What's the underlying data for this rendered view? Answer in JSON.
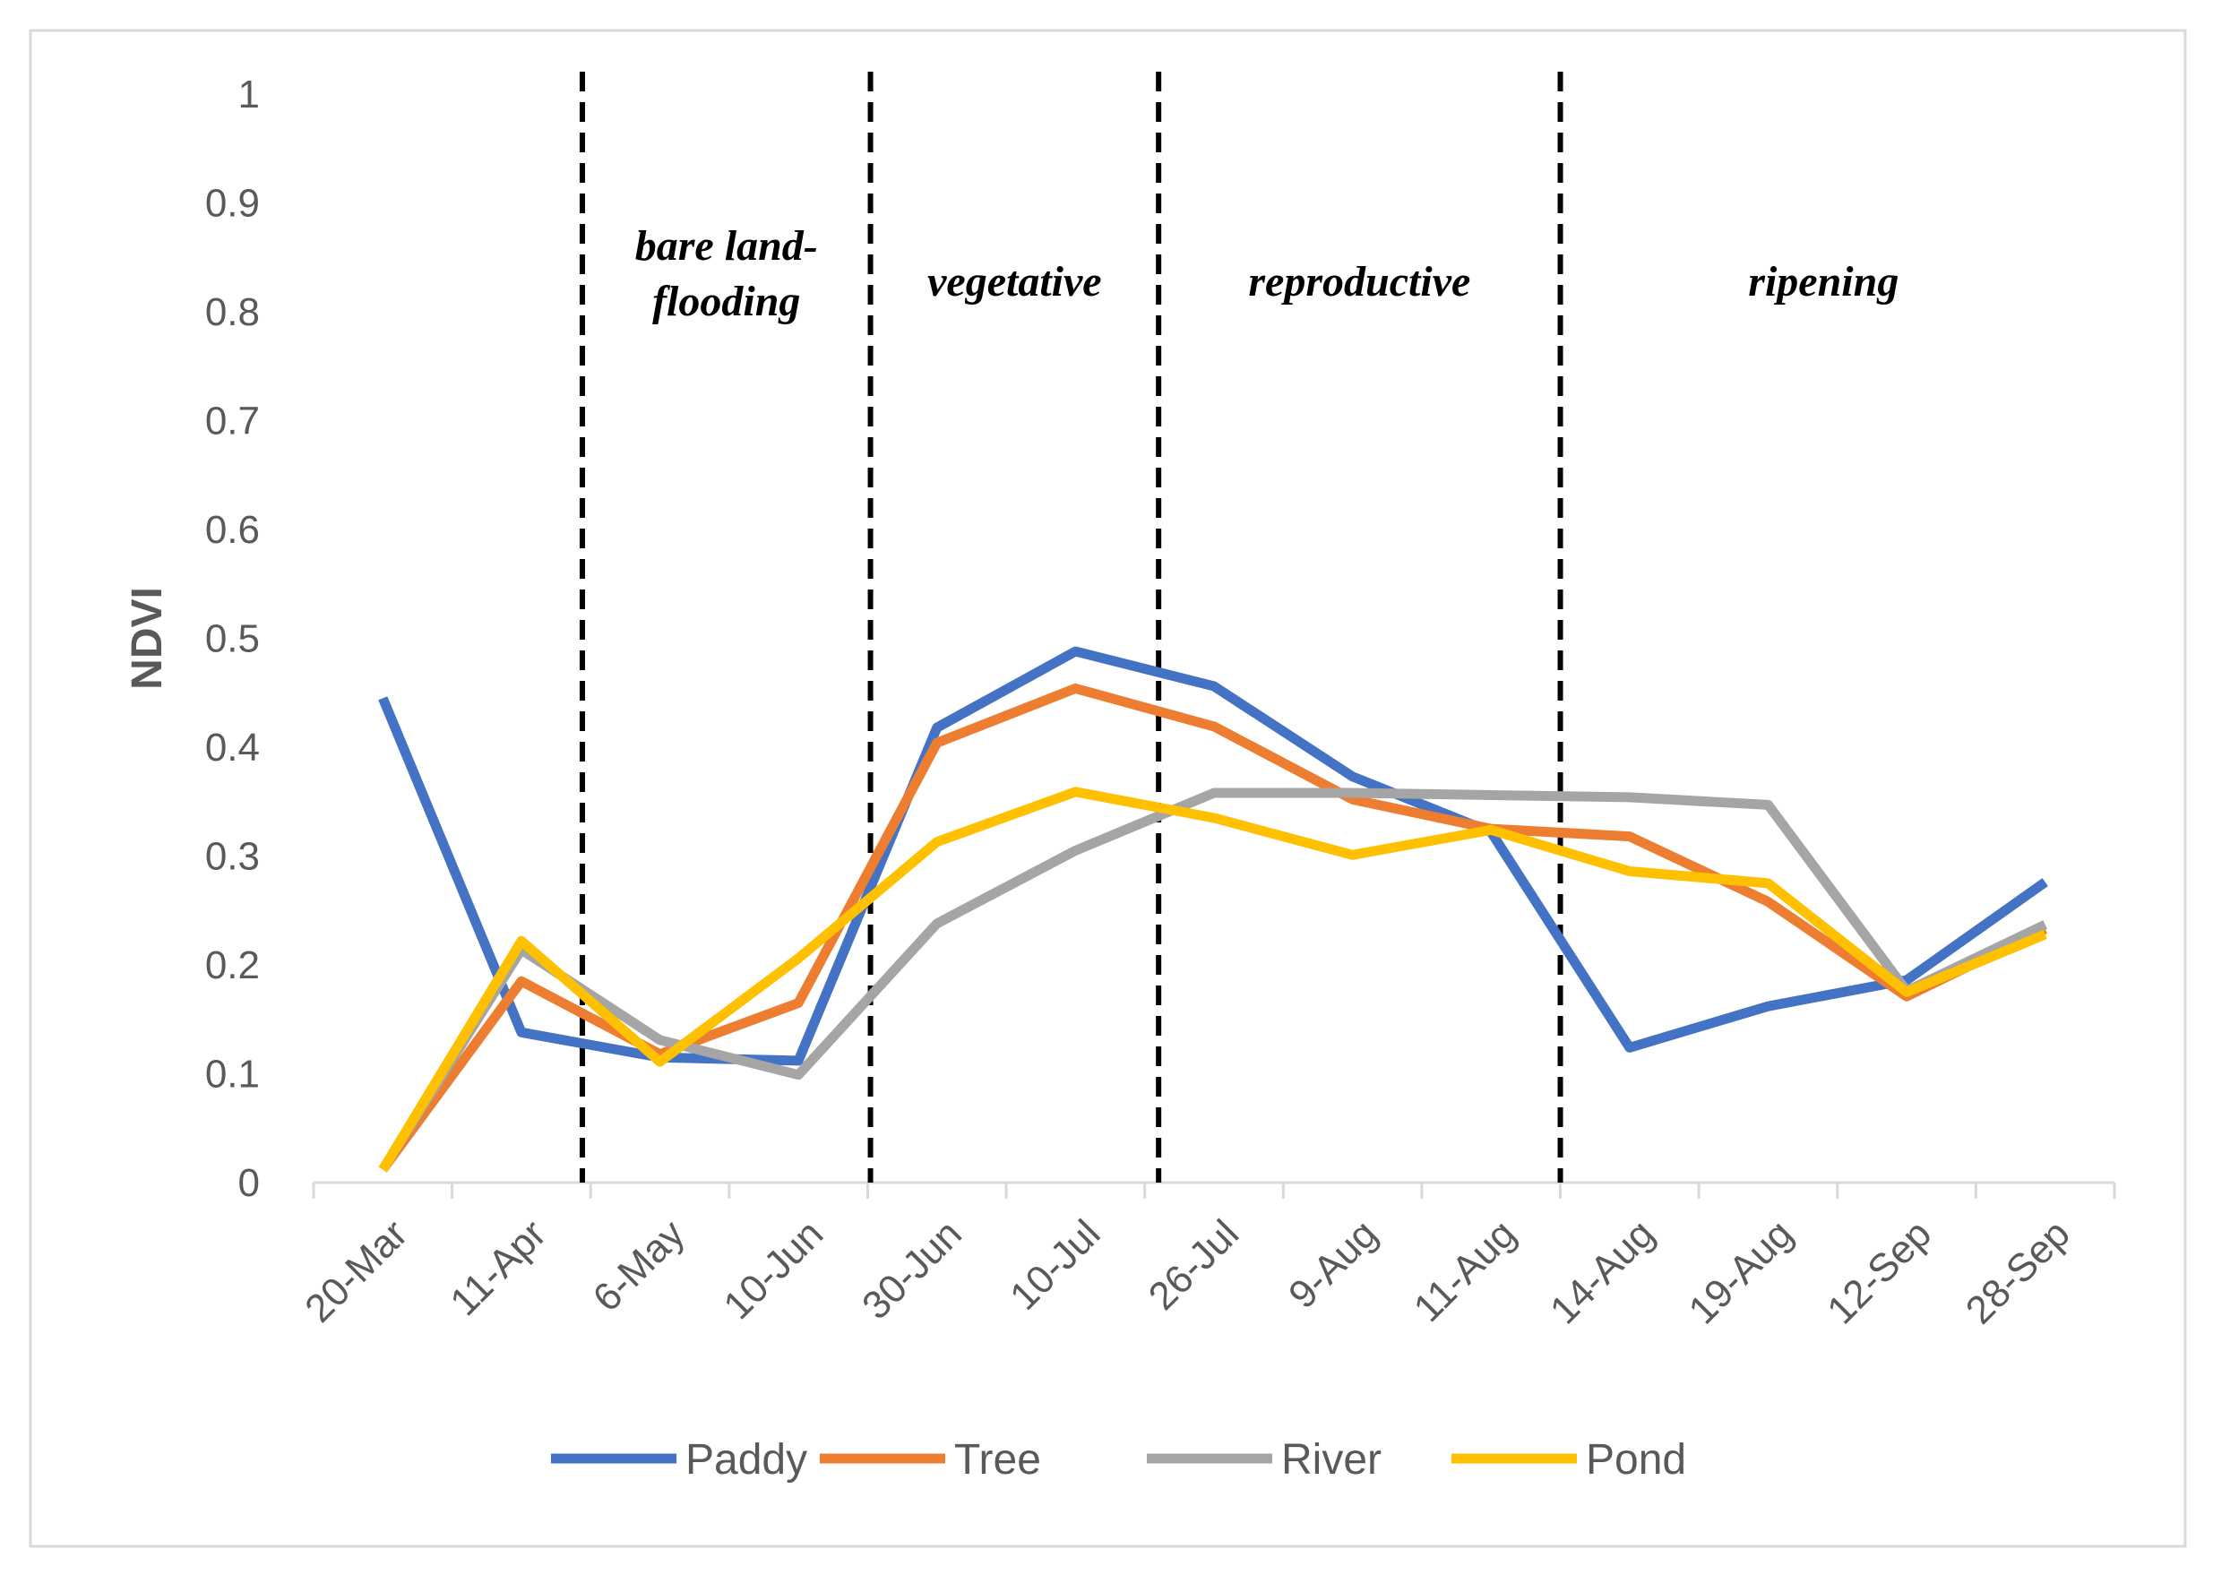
{
  "chart_data": {
    "type": "line",
    "title": "",
    "xlabel": "",
    "ylabel": "NDVI",
    "ylim": [
      0,
      1
    ],
    "yticks": [
      "0",
      "0.1",
      "0.2",
      "0.3",
      "0.4",
      "0.5",
      "0.6",
      "0.7",
      "0.8",
      "0.9",
      "1"
    ],
    "grid": false,
    "legend_position": "bottom",
    "categories": [
      "20-Mar",
      "11-Apr",
      "6-May",
      "10-Jun",
      "30-Jun",
      "10-Jul",
      "26-Jul",
      "9-Aug",
      "11-Aug",
      "14-Aug",
      "19-Aug",
      "12-Sep",
      "28-Sep"
    ],
    "series": [
      {
        "name": "Paddy",
        "color": "#4472c4",
        "values": [
          0.445,
          0.138,
          0.115,
          0.112,
          0.418,
          0.488,
          0.456,
          0.373,
          0.322,
          0.124,
          0.162,
          0.186,
          0.276
        ]
      },
      {
        "name": "Tree",
        "color": "#ed7d31",
        "values": [
          0.012,
          0.185,
          0.118,
          0.165,
          0.404,
          0.454,
          0.419,
          0.352,
          0.325,
          0.318,
          0.258,
          0.171,
          0.233
        ]
      },
      {
        "name": "River",
        "color": "#a5a5a5",
        "values": [
          0.012,
          0.214,
          0.131,
          0.099,
          0.238,
          0.305,
          0.358,
          0.358,
          0.356,
          0.354,
          0.347,
          0.176,
          0.237
        ]
      },
      {
        "name": "Pond",
        "color": "#ffc000",
        "values": [
          0.012,
          0.222,
          0.111,
          0.206,
          0.313,
          0.359,
          0.335,
          0.301,
          0.324,
          0.286,
          0.275,
          0.175,
          0.228
        ]
      }
    ],
    "phase_boundaries": [
      1.44,
      3.52,
      5.6,
      8.5
    ],
    "phases": [
      {
        "label_lines": [
          "bare land-",
          "flooding"
        ],
        "start": 1.44,
        "end": 3.52
      },
      {
        "label_lines": [
          "vegetative"
        ],
        "start": 3.52,
        "end": 5.6
      },
      {
        "label_lines": [
          "reproductive"
        ],
        "start": 5.6,
        "end": 8.5
      },
      {
        "label_lines": [
          "ripening"
        ],
        "start": 8.5,
        "end": 12.3
      }
    ]
  }
}
